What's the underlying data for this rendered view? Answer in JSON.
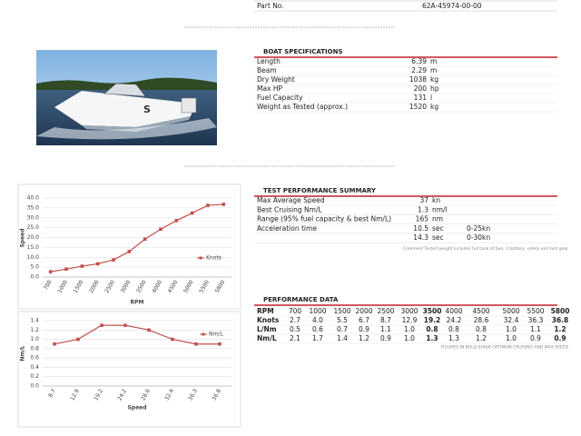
{
  "header": {
    "part_label": "Part No.",
    "part_value": "62A-45974-00-00"
  },
  "specs": {
    "title": "BOAT SPECIFICATIONS",
    "rows": [
      [
        "Length",
        "6.39",
        "m"
      ],
      [
        "Beam",
        "2.29",
        "m"
      ],
      [
        "Dry Weight",
        "1038",
        "kg"
      ],
      [
        "Max HP",
        "200",
        "hp"
      ],
      [
        "Fuel Capacity",
        "131",
        "l"
      ],
      [
        "Weight as Tested (approx.)",
        "1520",
        "kg"
      ]
    ]
  },
  "summary": {
    "title": "TEST PERFORMANCE SUMMARY",
    "rows": [
      [
        "Max Average Speed",
        "37",
        "kn"
      ],
      [
        "Best Cruising Nm/L",
        "1.3",
        "nm/l"
      ],
      [
        "Range (95% fuel capacity & best Nm/L)",
        "165",
        "nm"
      ]
    ],
    "acceleration": {
      "label": "Acceleration time",
      "rows": [
        [
          "10.5",
          "sec",
          "0-25kn"
        ],
        [
          "14.3",
          "sec",
          "0-30kn"
        ]
      ]
    },
    "note": "Comment Tested weight includes full tank of fuel, 1 battery, safety and test gear"
  },
  "performance": {
    "title": "PERFORMANCE DATA",
    "rows": [
      {
        "label": "RPM",
        "values": [
          "700",
          "1000",
          "1500",
          "2000",
          "2500",
          "3000",
          "3500",
          "4000",
          "4500",
          "5000",
          "5500",
          "5800"
        ]
      },
      {
        "label": "Knots",
        "values": [
          "2.7",
          "4.0",
          "5.5",
          "6.7",
          "8.7",
          "12.9",
          "19.2",
          "24.2",
          "28.6",
          "32.4",
          "36.3",
          "36.8"
        ]
      },
      {
        "label": "L/Nm",
        "values": [
          "0.5",
          "0.6",
          "0.7",
          "0.9",
          "1.1",
          "1.0",
          "0.8",
          "0.8",
          "0.8",
          "1.0",
          "1.1",
          "1.2"
        ]
      },
      {
        "label": "Nm/L",
        "values": [
          "2.1",
          "1.7",
          "1.4",
          "1.2",
          "0.9",
          "1.0",
          "1.3",
          "1.3",
          "1.2",
          "1.0",
          "0.9",
          "0.9"
        ]
      }
    ],
    "bold_columns": [
      6,
      11
    ],
    "note": "FIGURES IN BOLD SHOW OPTIMUM CRUISING AND MAX SPEED"
  },
  "charts": [
    {
      "type": "line",
      "categories": [
        700,
        1000,
        1500,
        2000,
        2500,
        3000,
        3500,
        4000,
        4500,
        5000,
        5500,
        5800
      ],
      "series": [
        {
          "name": "Knots",
          "color": "#c0504d",
          "values": [
            2.7,
            4.0,
            5.5,
            6.7,
            8.7,
            12.9,
            19.2,
            24.2,
            28.6,
            32.4,
            36.3,
            36.8
          ]
        }
      ],
      "ylim": [
        0,
        40
      ],
      "yticks": [
        {
          "value": 0,
          "label": "0.0"
        },
        {
          "value": 5,
          "label": "5.0"
        },
        {
          "value": 10,
          "label": "10.0"
        },
        {
          "value": 15,
          "label": "15.0"
        },
        {
          "value": 20,
          "label": "20.0"
        },
        {
          "value": 25,
          "label": "25.0"
        },
        {
          "value": 30,
          "label": "30.0"
        },
        {
          "value": 35,
          "label": "35.0"
        },
        {
          "value": 40,
          "label": "40.0"
        }
      ],
      "xlabel": "RPM",
      "ylabel": "Speed",
      "grid": true,
      "legend": "right"
    },
    {
      "type": "line",
      "categories": [
        8.7,
        12.9,
        19.2,
        24.2,
        28.6,
        32.4,
        36.3,
        36.8
      ],
      "series": [
        {
          "name": "Nm/L",
          "color": "#c0504d",
          "values": [
            0.9,
            1.0,
            1.3,
            1.3,
            1.2,
            1.0,
            0.9,
            0.9
          ]
        }
      ],
      "ylim": [
        0,
        1.4
      ],
      "yticks": [
        {
          "value": 0,
          "label": "0.0"
        },
        0.2,
        0.4,
        0.6,
        0.8,
        {
          "value": 1,
          "label": "1.0"
        },
        1.2,
        1.4
      ],
      "xlabel": "Speed",
      "ylabel": "Nm/L",
      "grid": true,
      "legend": "right"
    }
  ]
}
